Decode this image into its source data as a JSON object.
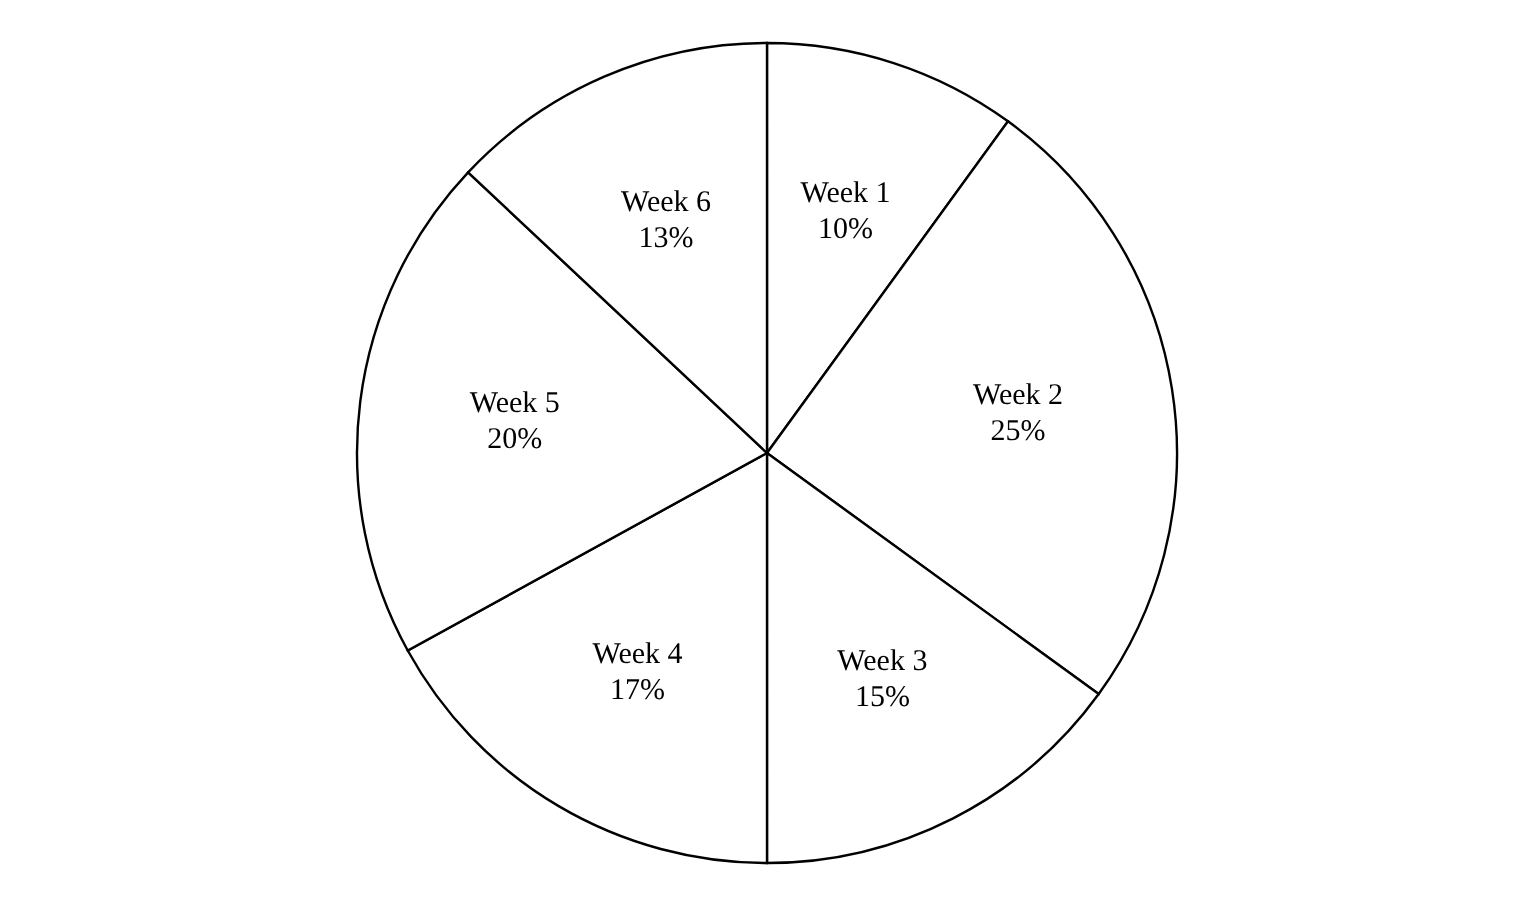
{
  "chart_data": {
    "type": "pie",
    "categories": [
      "Week 1",
      "Week 2",
      "Week 3",
      "Week 4",
      "Week 5",
      "Week 6"
    ],
    "values": [
      10,
      25,
      15,
      17,
      20,
      13
    ],
    "value_labels": [
      "10%",
      "25%",
      "15%",
      "17%",
      "20%",
      "13%"
    ],
    "colors": [
      "#ffffff",
      "#ffffff",
      "#ffffff",
      "#ffffff",
      "#ffffff",
      "#ffffff"
    ],
    "legend": false
  }
}
